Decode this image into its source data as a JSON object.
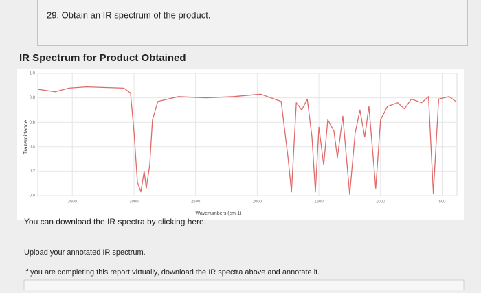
{
  "question": "29. Obtain an IR spectrum of the product.",
  "section_title": "IR Spectrum for Product Obtained",
  "download_text": "You can download the IR spectra by clicking here.",
  "upload_text": "Upload your annotated IR spectrum.",
  "virtual_text": "If you are completing this report virtually, download the IR spectra above and annotate it.",
  "chart_data": {
    "type": "line",
    "xlabel": "Wavenumbers (cm-1)",
    "ylabel": "Transmittance",
    "x": [
      3778,
      3639,
      3528,
      3389,
      3083,
      3028,
      3000,
      2972,
      2944,
      2917,
      2900,
      2872,
      2850,
      2806,
      2639,
      2417,
      2194,
      1972,
      1806,
      1750,
      1722,
      1683,
      1639,
      1594,
      1556,
      1528,
      1500,
      1461,
      1428,
      1378,
      1350,
      1306,
      1250,
      1206,
      1167,
      1128,
      1094,
      1039,
      1000,
      944,
      861,
      806,
      750,
      667,
      611,
      572,
      528,
      444,
      389
    ],
    "values": [
      0.87,
      0.85,
      0.88,
      0.89,
      0.88,
      0.84,
      0.53,
      0.11,
      0.03,
      0.2,
      0.06,
      0.25,
      0.62,
      0.77,
      0.81,
      0.8,
      0.81,
      0.83,
      0.77,
      0.31,
      0.03,
      0.76,
      0.7,
      0.79,
      0.48,
      0.03,
      0.56,
      0.25,
      0.62,
      0.53,
      0.31,
      0.65,
      0.01,
      0.51,
      0.7,
      0.48,
      0.73,
      0.06,
      0.62,
      0.73,
      0.76,
      0.71,
      0.79,
      0.76,
      0.81,
      0.02,
      0.79,
      0.81,
      0.77
    ],
    "color": "#e06a6a",
    "xlim": [
      3780,
      380
    ],
    "xticks": [
      3500,
      3000,
      2500,
      2000,
      1500,
      1000,
      500
    ],
    "ylim": [
      0,
      1
    ],
    "yticks": [
      {
        "value": 0,
        "label": "0.0"
      },
      0.2,
      0.4,
      0.6,
      0.8,
      {
        "value": 1,
        "label": "1.0"
      }
    ],
    "grid": true
  }
}
